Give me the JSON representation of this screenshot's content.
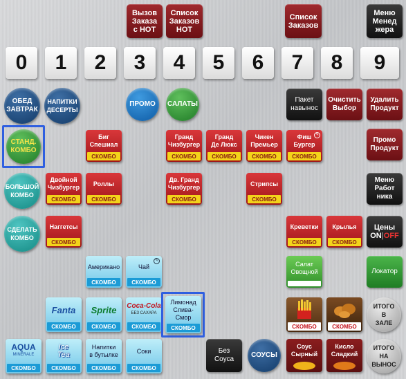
{
  "top_buttons": {
    "call_order_label": "Вызов\nЗаказа\nс НОТ",
    "order_list_label": "Список\nЗаказов\nНОТ",
    "orders_label": "Список\nЗаказов",
    "manager_menu_label": "Меню\nМенед\nжера"
  },
  "digits": [
    "0",
    "1",
    "2",
    "3",
    "4",
    "5",
    "6",
    "7",
    "8",
    "9"
  ],
  "categories": {
    "breakfast": "ОБЕД\nЗАВТРАК",
    "drinks": "НАПИТКИ\nДЕСЕРТЫ",
    "promo": "ПРОМО",
    "salads": "САЛАТЫ",
    "std_combo": "СТАНД.\nКОМБО",
    "big_combo": "БОЛЬШОЙ\nКОМБО",
    "make_combo": "СДЕЛАТЬ\nКОМБО",
    "sauces": "СОУСЫ",
    "total_dine_in": "ИТОГО\nВ\nЗАЛЕ",
    "total_takeaway": "ИТОГО\nНА\nВЫНОС"
  },
  "right_buttons": {
    "takeaway_bag": "Пакет\nнавынос",
    "clear": "Очистить\nВыбор",
    "delete": "Удалить\nПродукт",
    "promo_product": "Промо\nПродукт",
    "crew_menu": "Меню\nРабот\nника",
    "prices": "Цены",
    "prices_on": "ON",
    "prices_off": "OFF",
    "locator": "Локатор",
    "no_sauce": "Без\nСоуса"
  },
  "combo_badge": "СКОМБО",
  "products": {
    "big_special": "Биг\nСпешиал",
    "grand_cheese": "Гранд\nЧизбургер",
    "grand_deluxe": "Гранд\nДе Люкс",
    "chicken_premier": "Чикен\nПремьер",
    "fish_burger": "Фиш\nБургер",
    "double_cheese": "Двойной\nЧизбургер",
    "rolls": "Роллы",
    "dbl_grand_cheese": "Дв. Гранд\nЧизбургер",
    "strips": "Стрипсы",
    "nuggets": "Наггетсы",
    "shrimp": "Креветки",
    "wings": "Крылья",
    "salad_veg": "Салат\nОвощной",
    "americano": "Американо",
    "tea": "Чай",
    "fanta": "Fanta",
    "sprite": "Sprite",
    "cocacola": "Coca-Cola",
    "cocacola_sub": "БЕЗ САХАРА",
    "lemonade": "Лимонад\nСлива-Смор",
    "fries_box": "СКОМБО",
    "chicken_box": "СКОМБО",
    "sauce_cheese": "Соус\nСырный",
    "sweet_sour": "Кисло\nСладкий",
    "aqua": "AQUA",
    "aqua_sub": "MINERALE",
    "icetea": "Ice\nTea",
    "bottled": "Напитки\nв бутылке",
    "juices": "Соки"
  },
  "colors": {
    "maroon": "#7c1a1e",
    "combo_yellow": "#f3d41a",
    "selection_blue": "#2f5fe0",
    "accent_red": "#c3121c"
  }
}
